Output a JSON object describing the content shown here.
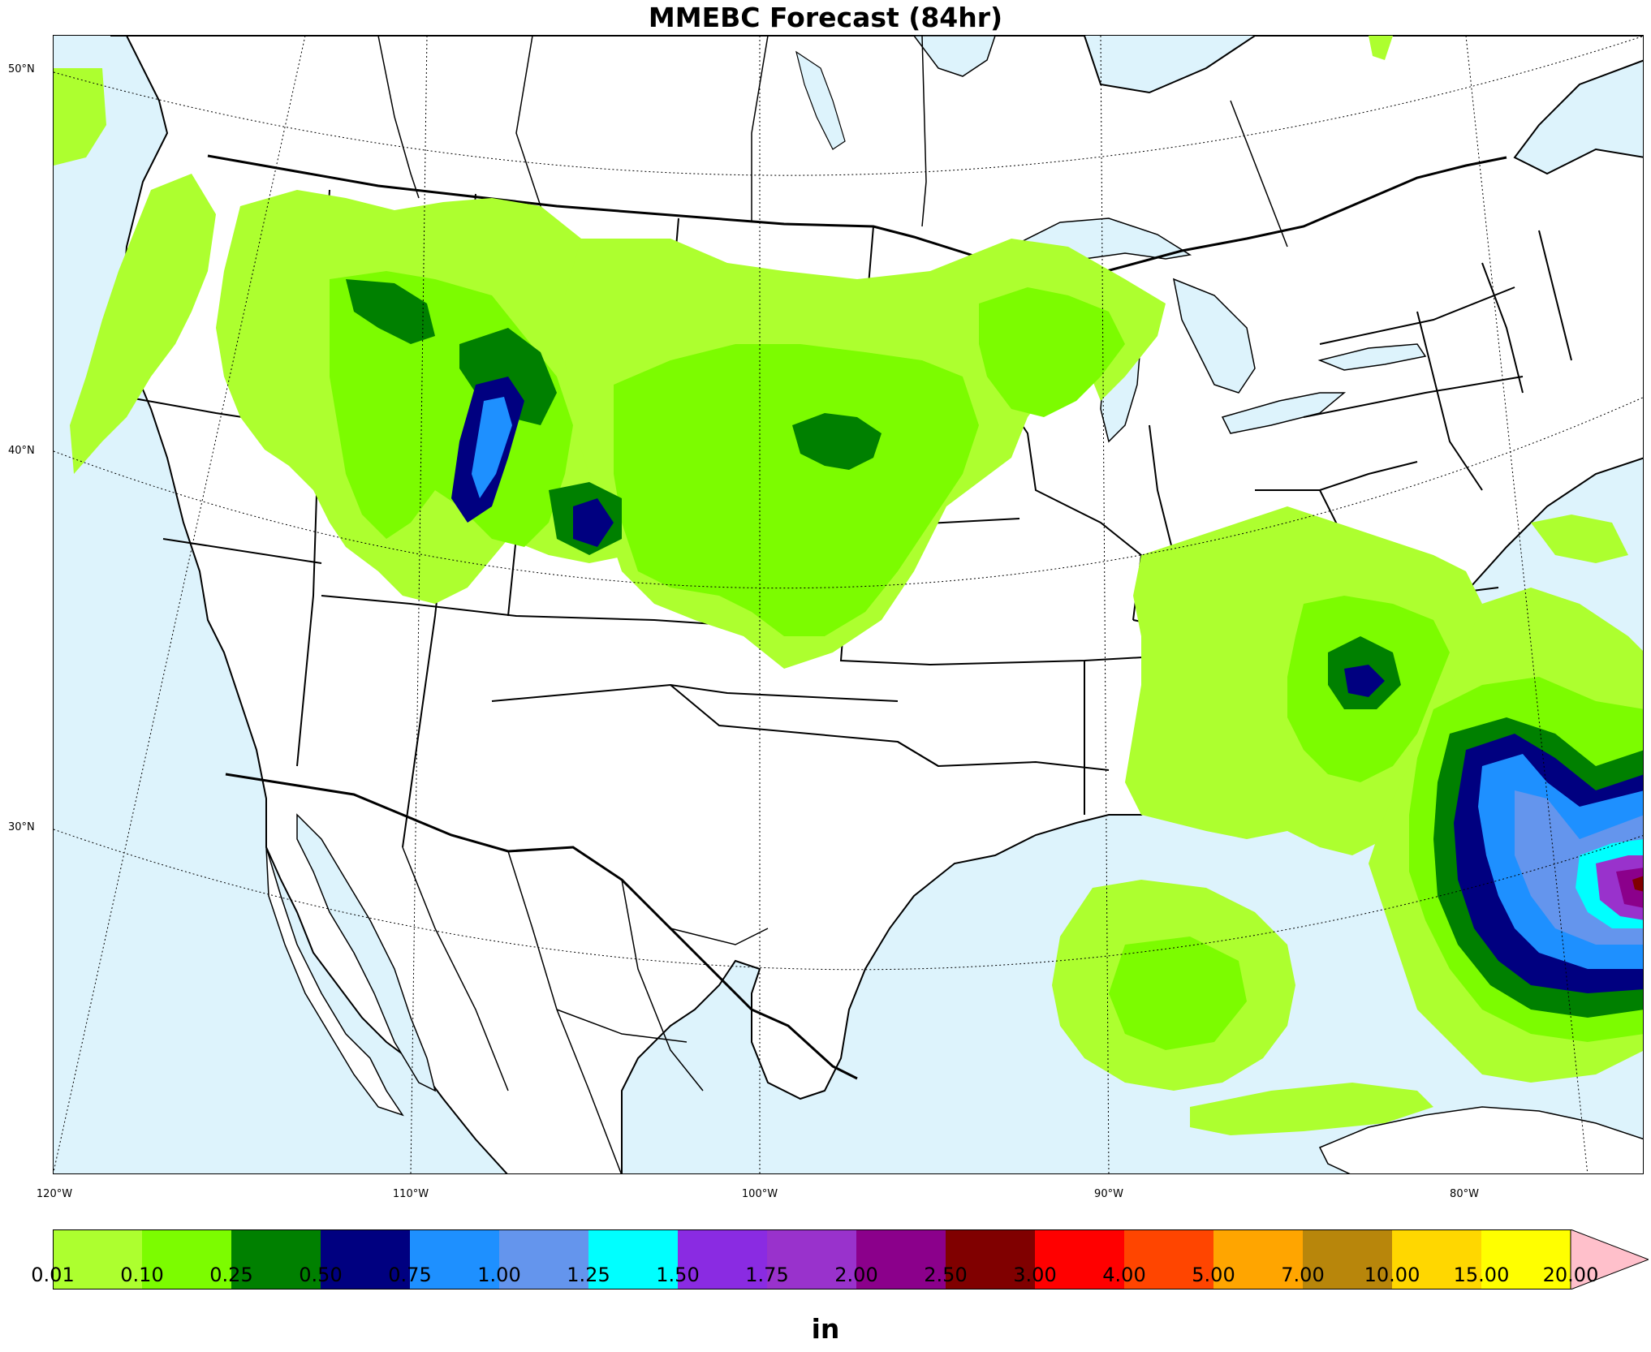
{
  "title": "MMEBC Forecast (84hr)",
  "lat_labels": [
    "50°N",
    "40°N",
    "30°N"
  ],
  "lon_labels": [
    "120°W",
    "110°W",
    "100°W",
    "90°W",
    "80°W"
  ],
  "colorbar": {
    "units": "in",
    "ticks": [
      "0.01",
      "0.10",
      "0.25",
      "0.50",
      "0.75",
      "1.00",
      "1.25",
      "1.50",
      "1.75",
      "2.00",
      "2.50",
      "3.00",
      "4.00",
      "5.00",
      "7.00",
      "10.00",
      "15.00",
      "20.00"
    ],
    "colors": [
      "#adff2f",
      "#7cfc00",
      "#008000",
      "#000080",
      "#1e90ff",
      "#6495ed",
      "#00ffff",
      "#8a2be2",
      "#9932cc",
      "#8b008b",
      "#800000",
      "#ff0000",
      "#ff4500",
      "#ffa500",
      "#b8860b",
      "#ffd700",
      "#ffff00"
    ],
    "extend_color": "#ffc0cb"
  },
  "map": {
    "water_color": "#ddf3fc",
    "land_color": "#ffffff",
    "precip_regions": [
      {
        "name": "northern-rockies",
        "level": 0
      },
      {
        "name": "pacific-northwest",
        "level": 0
      },
      {
        "name": "great-plains",
        "level": 1
      },
      {
        "name": "great-lakes",
        "level": 0
      },
      {
        "name": "southeast",
        "level": 0
      },
      {
        "name": "carolinas",
        "level": 1
      },
      {
        "name": "gulf-of-mexico",
        "level": 0
      },
      {
        "name": "atlantic-system",
        "level": 1
      },
      {
        "name": "atlantic-core",
        "level": 3
      }
    ]
  }
}
